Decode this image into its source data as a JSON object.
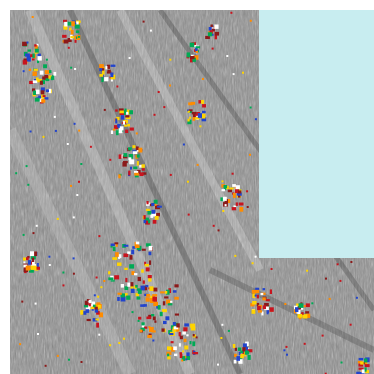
{
  "image": {
    "kind": "false-color raster tile",
    "background_gray": "#7f7f7f",
    "overlay_color": "#c8edf0",
    "palette": [
      "#ffd400",
      "#c8141e",
      "#00aa55",
      "#2244cc",
      "#8b1a1a",
      "#ff8c00",
      "#ffffff"
    ]
  }
}
